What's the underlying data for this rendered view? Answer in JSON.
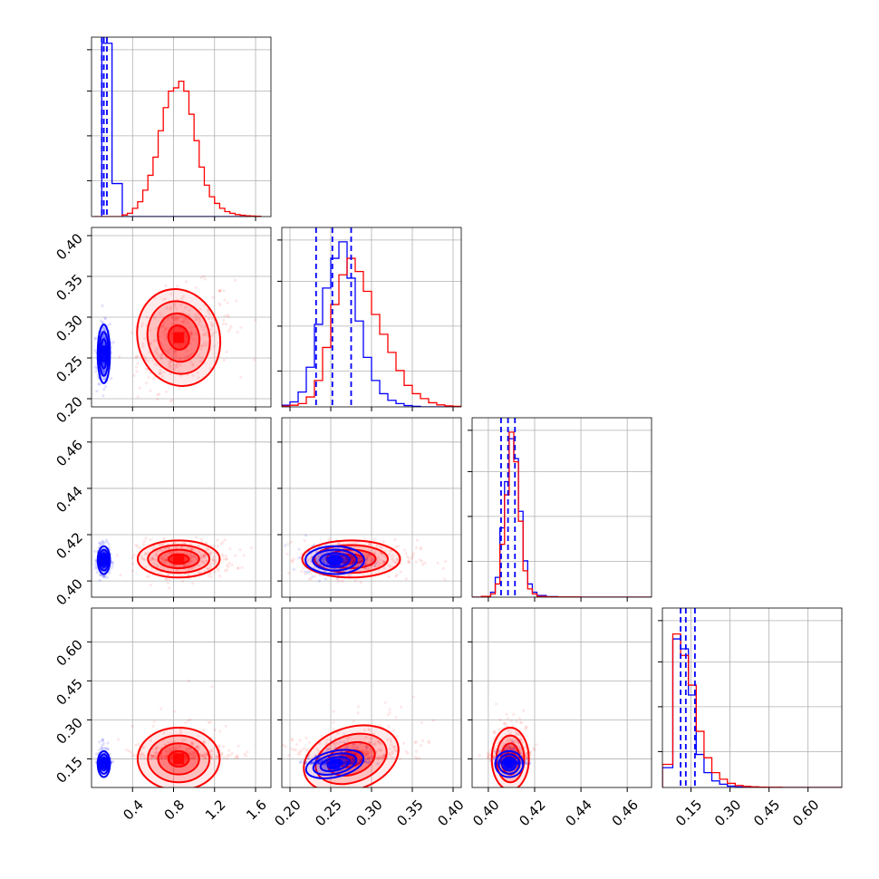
{
  "chart_data": {
    "type": "scatter",
    "subtype": "corner-plot",
    "title": "",
    "parameters": [
      {
        "ticks": [
          0.4,
          0.8,
          1.2,
          1.6
        ],
        "tick_labels": [
          "0.4",
          "0.8",
          "1.2",
          "1.6"
        ],
        "range": [
          0.0,
          1.75
        ]
      },
      {
        "ticks": [
          0.2,
          0.25,
          0.3,
          0.35,
          0.4
        ],
        "tick_labels": [
          "0.20",
          "0.25",
          "0.30",
          "0.35",
          "0.40"
        ],
        "range": [
          0.19,
          0.41
        ]
      },
      {
        "ticks": [
          0.4,
          0.42,
          0.44,
          0.46
        ],
        "tick_labels": [
          "0.40",
          "0.42",
          "0.44",
          "0.46"
        ],
        "range": [
          0.393,
          0.4705
        ]
      },
      {
        "ticks": [
          0.15,
          0.3,
          0.45,
          0.6
        ],
        "tick_labels": [
          "0.15",
          "0.30",
          "0.45",
          "0.60"
        ],
        "range": [
          0.04,
          0.73
        ]
      }
    ],
    "series": [
      {
        "color": "#ff0000",
        "means": [
          0.85,
          0.275,
          0.4095,
          0.15
        ],
        "stds": [
          0.2,
          0.03,
          0.004,
          0.06
        ],
        "quantiles": [
          [
            0.65,
            0.85,
            1.05
          ],
          [
            0.245,
            0.272,
            0.305
          ],
          [
            0.405,
            0.4095,
            0.414
          ],
          [
            0.11,
            0.15,
            0.2
          ]
        ],
        "hist_peak_bin": [
          0.85,
          0.27,
          0.41,
          0.12
        ]
      },
      {
        "color": "#0000ff",
        "means": [
          0.12,
          0.255,
          0.409,
          0.13
        ],
        "stds": [
          0.03,
          0.018,
          0.003,
          0.025
        ],
        "quantiles": [
          [
            0.1,
            0.12,
            0.15
          ],
          [
            0.232,
            0.252,
            0.275
          ],
          [
            0.4055,
            0.4085,
            0.4115
          ],
          [
            0.11,
            0.13,
            0.165
          ]
        ],
        "hist_peak_bin": [
          0.12,
          0.26,
          0.41,
          0.12
        ]
      }
    ],
    "histograms": [
      {
        "param": 0,
        "bins": [
          0.02,
          0.1,
          0.2,
          0.3,
          0.35,
          0.4,
          0.45,
          0.5,
          0.55,
          0.6,
          0.65,
          0.7,
          0.75,
          0.8,
          0.85,
          0.9,
          0.95,
          1.0,
          1.05,
          1.1,
          1.15,
          1.2,
          1.25,
          1.3,
          1.35,
          1.4,
          1.45,
          1.5,
          1.55,
          1.6,
          1.65
        ],
        "red": [
          0,
          0,
          0,
          0.01,
          0.02,
          0.05,
          0.09,
          0.16,
          0.25,
          0.36,
          0.52,
          0.66,
          0.76,
          0.78,
          0.82,
          0.76,
          0.62,
          0.46,
          0.3,
          0.19,
          0.12,
          0.08,
          0.05,
          0.03,
          0.02,
          0.012,
          0.008,
          0.005,
          0.003,
          0.002
        ],
        "blue": [
          null,
          4.0,
          0.2,
          0,
          0,
          0,
          0,
          0,
          0,
          0,
          0,
          0,
          0,
          0,
          0,
          0,
          0,
          0,
          0,
          0,
          0,
          0,
          0,
          0,
          0,
          0,
          0,
          0,
          0,
          0
        ]
      },
      {
        "param": 1,
        "bins": [
          0.19,
          0.2,
          0.21,
          0.22,
          0.23,
          0.24,
          0.25,
          0.26,
          0.27,
          0.28,
          0.29,
          0.3,
          0.31,
          0.32,
          0.33,
          0.34,
          0.35,
          0.36,
          0.37,
          0.38,
          0.39,
          0.4,
          0.41
        ],
        "red": [
          0.005,
          0.01,
          0.02,
          0.06,
          0.16,
          0.36,
          0.62,
          0.8,
          0.9,
          0.82,
          0.7,
          0.56,
          0.44,
          0.33,
          0.22,
          0.13,
          0.08,
          0.05,
          0.025,
          0.012,
          0.006,
          0.003
        ],
        "blue": [
          0.01,
          0.03,
          0.09,
          0.24,
          0.5,
          0.72,
          0.9,
          1.0,
          0.78,
          0.52,
          0.3,
          0.16,
          0.08,
          0.04,
          0.02,
          0.008,
          0.003,
          0.0,
          0.0,
          0.0,
          0.0,
          0.0
        ]
      },
      {
        "param": 2,
        "bins": [
          0.393,
          0.397,
          0.401,
          0.403,
          0.405,
          0.407,
          0.409,
          0.411,
          0.413,
          0.415,
          0.417,
          0.419,
          0.421,
          0.425,
          0.43,
          0.44,
          0.45,
          0.46,
          0.4705
        ],
        "red": [
          0,
          0.005,
          0.02,
          0.08,
          0.32,
          0.62,
          1.0,
          0.82,
          0.46,
          0.16,
          0.05,
          0.02,
          0.005,
          0.002,
          0.001,
          0.0,
          0.0,
          0.0
        ],
        "blue": [
          0,
          0.005,
          0.03,
          0.12,
          0.42,
          0.7,
          0.96,
          0.84,
          0.52,
          0.22,
          0.08,
          0.03,
          0.01,
          0.003,
          0.0,
          0.0,
          0.0,
          0.0
        ]
      },
      {
        "param": 3,
        "bins": [
          0.04,
          0.08,
          0.11,
          0.14,
          0.17,
          0.2,
          0.23,
          0.26,
          0.29,
          0.32,
          0.35,
          0.38,
          0.41,
          0.44,
          0.47,
          0.5,
          0.56,
          0.62,
          0.68,
          0.73
        ],
        "red": [
          0.14,
          0.93,
          0.8,
          0.62,
          0.34,
          0.18,
          0.09,
          0.05,
          0.025,
          0.012,
          0.007,
          0.004,
          0.002,
          0.001,
          0.001,
          0.0,
          0.0,
          0.0,
          0.0
        ],
        "blue": [
          0.12,
          0.9,
          0.84,
          0.56,
          0.2,
          0.09,
          0.04,
          0.02,
          0.008,
          0.003,
          0.001,
          0.0,
          0.0,
          0.0,
          0.0,
          0.0,
          0.0,
          0.0,
          0.0
        ]
      }
    ],
    "grid": true,
    "legend": "none"
  }
}
